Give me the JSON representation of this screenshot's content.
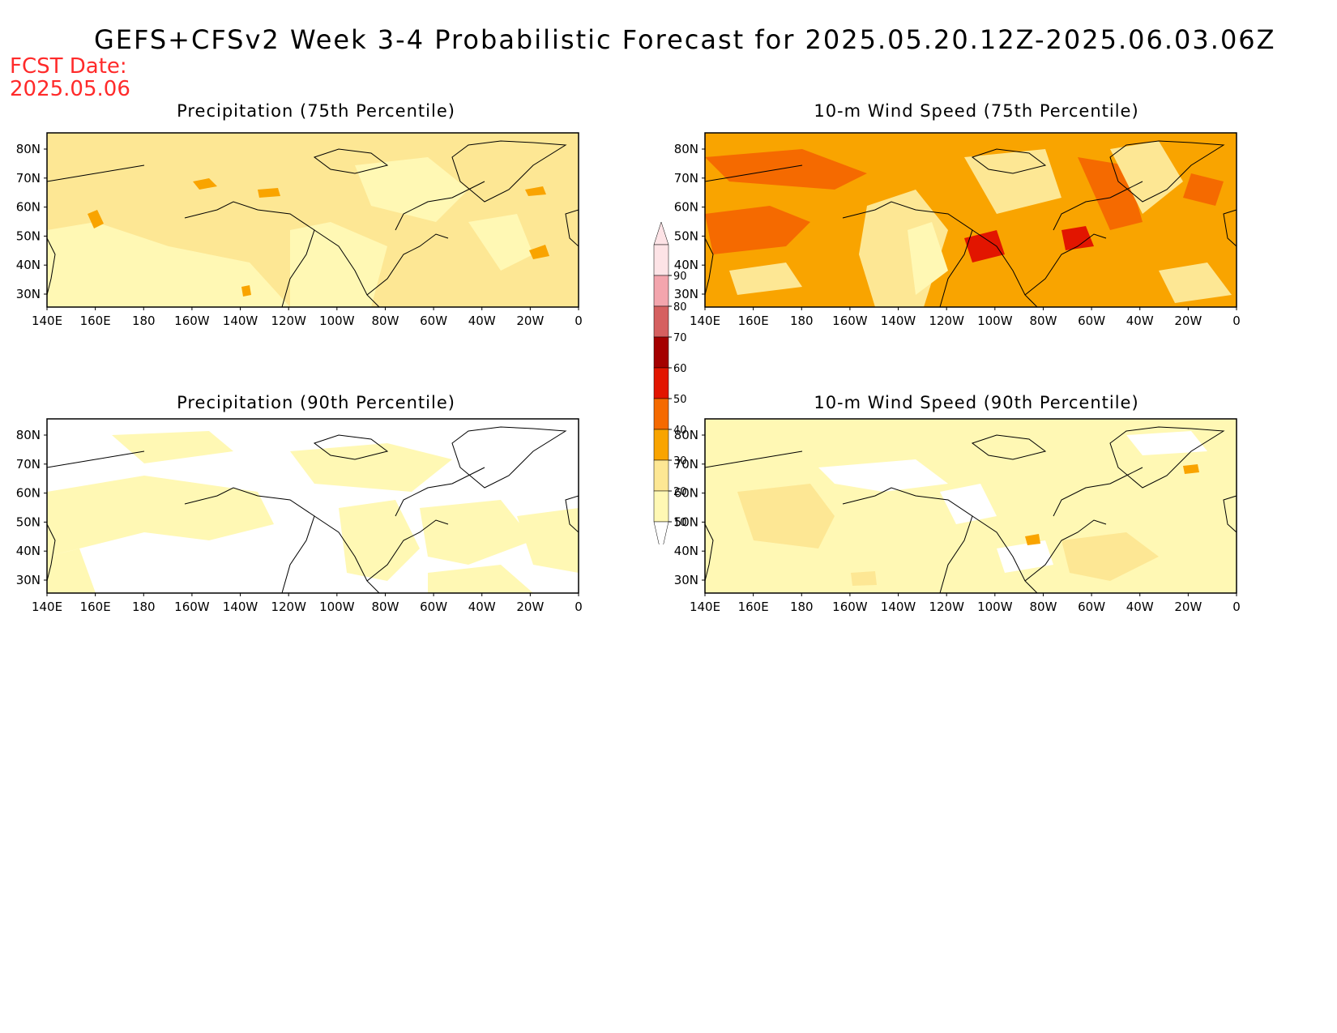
{
  "header": {
    "title": "GEFS+CFSv2 Week 3-4 Probabilistic Forecast for 2025.05.20.12Z-2025.06.03.06Z",
    "fcst_label": "FCST Date:",
    "fcst_date": "2025.05.06"
  },
  "axes": {
    "lon_labels": [
      "140E",
      "160E",
      "180",
      "160W",
      "140W",
      "120W",
      "100W",
      "80W",
      "60W",
      "40W",
      "20W",
      "0"
    ],
    "lat_labels": [
      "80N",
      "70N",
      "60N",
      "50N",
      "40N",
      "30N"
    ]
  },
  "panels": [
    {
      "title": "Precipitation (75th Percentile)",
      "field": "precip75"
    },
    {
      "title": "10-m Wind Speed (75th Percentile)",
      "field": "wind75"
    },
    {
      "title": "Precipitation (90th Percentile)",
      "field": "precip90"
    },
    {
      "title": "10-m Wind Speed (90th Percentile)",
      "field": "wind90"
    }
  ],
  "colorbar": {
    "levels": [
      "10",
      "20",
      "30",
      "40",
      "50",
      "60",
      "70",
      "80",
      "90"
    ],
    "colors": [
      "#fff8b4",
      "#fde794",
      "#f9a400",
      "#f56a00",
      "#e21500",
      "#a40000",
      "#d56060",
      "#f3a5ad",
      "#fde3e6"
    ]
  }
}
